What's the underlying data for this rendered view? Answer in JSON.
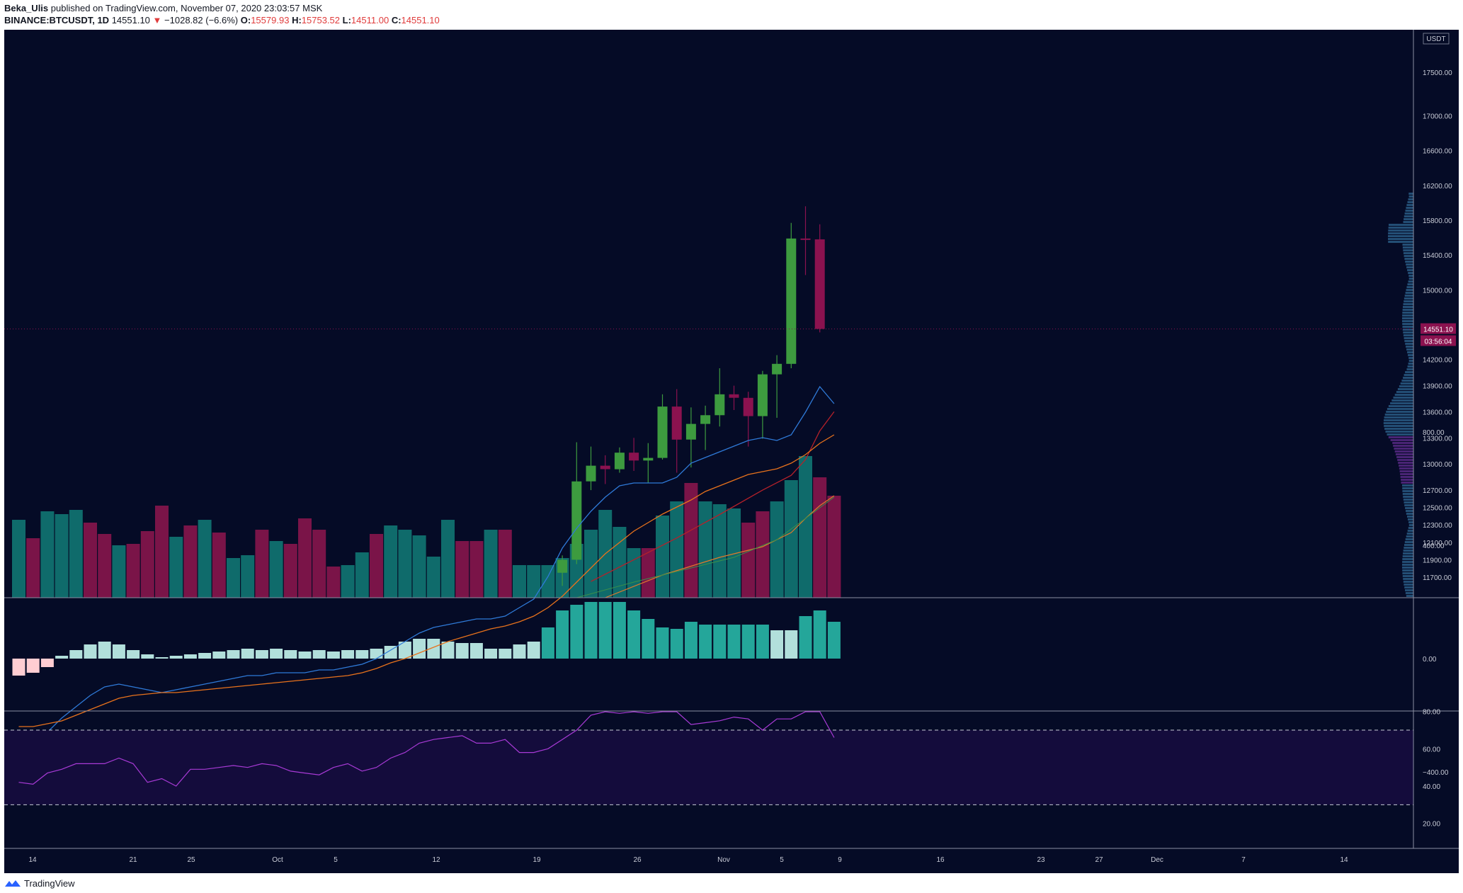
{
  "header": {
    "author": "Beka_Ulis",
    "published_text": "published on TradingView.com, November 07, 2020 23:03:57 MSK",
    "symbol": "BINANCE:BTCUSDT, 1D",
    "last": "14551.10",
    "change": "−1028.82 (−6.6%)",
    "o_label": "O:",
    "o_value": "15579.93",
    "h_label": "H:",
    "h_value": "15753.52",
    "l_label": "L:",
    "l_value": "14511.00",
    "c_label": "C:",
    "c_value": "14551.10"
  },
  "footer": {
    "brand": "TradingView"
  },
  "colors": {
    "background": "#050b26",
    "up": "#3d9b3f",
    "down": "#8b124f",
    "vol_up": "#0f6b6b",
    "vol_down": "#7a1448",
    "macd": "#2f7ad8",
    "signal": "#e8721c",
    "rsi": "#a83ad6",
    "rsi_band": "#140c3c",
    "ma_red": "#b5212a",
    "ma_orange": "#e07a2b",
    "price_label": "#8b124f"
  },
  "chart_data": [
    {
      "type": "candlestick",
      "title": "BINANCE:BTCUSDT, 1D",
      "currency": "USDT",
      "current_price": "14551.10",
      "countdown": "03:56:04",
      "y_ticks": [
        "17500.00",
        "17000.00",
        "16600.00",
        "16200.00",
        "15800.00",
        "15400.00",
        "15000.00",
        "14551.10",
        "14200.00",
        "13900.00",
        "13600.00",
        "13300.00",
        "13000.00",
        "12700.00",
        "12500.00",
        "12300.00",
        "12100.00",
        "11900.00",
        "11700.00"
      ],
      "x_ticks": [
        "14",
        "21",
        "25",
        "Oct",
        "5",
        "12",
        "19",
        "26",
        "Nov",
        "5",
        "9",
        "16",
        "23",
        "27",
        "Dec",
        "7",
        "14"
      ],
      "candles": [
        {
          "d": "Oct 20",
          "o": 11750,
          "h": 11950,
          "l": 11600,
          "c": 11900
        },
        {
          "d": "Oct 21",
          "o": 11900,
          "h": 13250,
          "l": 11850,
          "c": 12800
        },
        {
          "d": "Oct 22",
          "o": 12800,
          "h": 13200,
          "l": 12700,
          "c": 12980
        },
        {
          "d": "Oct 23",
          "o": 12980,
          "h": 13100,
          "l": 12770,
          "c": 12940
        },
        {
          "d": "Oct 24",
          "o": 12940,
          "h": 13190,
          "l": 12900,
          "c": 13130
        },
        {
          "d": "Oct 25",
          "o": 13130,
          "h": 13300,
          "l": 12920,
          "c": 13040
        },
        {
          "d": "Oct 26",
          "o": 13040,
          "h": 13240,
          "l": 12780,
          "c": 13070
        },
        {
          "d": "Oct 27",
          "o": 13070,
          "h": 13800,
          "l": 13050,
          "c": 13660
        },
        {
          "d": "Oct 28",
          "o": 13660,
          "h": 13860,
          "l": 12900,
          "c": 13280
        },
        {
          "d": "Oct 29",
          "o": 13280,
          "h": 13650,
          "l": 12960,
          "c": 13460
        },
        {
          "d": "Oct 30",
          "o": 13460,
          "h": 13670,
          "l": 13160,
          "c": 13560
        },
        {
          "d": "Oct 31",
          "o": 13560,
          "h": 14100,
          "l": 13430,
          "c": 13800
        },
        {
          "d": "Nov 1",
          "o": 13800,
          "h": 13900,
          "l": 13620,
          "c": 13760
        },
        {
          "d": "Nov 2",
          "o": 13760,
          "h": 13830,
          "l": 13200,
          "c": 13550
        },
        {
          "d": "Nov 3",
          "o": 13550,
          "h": 14070,
          "l": 13290,
          "c": 14030
        },
        {
          "d": "Nov 4",
          "o": 14030,
          "h": 14250,
          "l": 13530,
          "c": 14150
        },
        {
          "d": "Nov 5",
          "o": 14150,
          "h": 15770,
          "l": 14100,
          "c": 15590
        },
        {
          "d": "Nov 6",
          "o": 15590,
          "h": 15960,
          "l": 15170,
          "c": 15580
        },
        {
          "d": "Nov 7",
          "o": 15579.93,
          "h": 15753.52,
          "l": 14511,
          "c": 14551.1
        }
      ],
      "volume": [
        {
          "v": 0.55,
          "up": true
        },
        {
          "v": 0.42,
          "up": false
        },
        {
          "v": 0.61,
          "up": true
        },
        {
          "v": 0.59,
          "up": true
        },
        {
          "v": 0.62,
          "up": true
        },
        {
          "v": 0.53,
          "up": false
        },
        {
          "v": 0.45,
          "up": false
        },
        {
          "v": 0.37,
          "up": true
        },
        {
          "v": 0.38,
          "up": false
        },
        {
          "v": 0.47,
          "up": false
        },
        {
          "v": 0.65,
          "up": false
        },
        {
          "v": 0.43,
          "up": true
        },
        {
          "v": 0.51,
          "up": false
        },
        {
          "v": 0.55,
          "up": true
        },
        {
          "v": 0.46,
          "up": false
        },
        {
          "v": 0.28,
          "up": true
        },
        {
          "v": 0.3,
          "up": true
        },
        {
          "v": 0.48,
          "up": false
        },
        {
          "v": 0.4,
          "up": true
        },
        {
          "v": 0.38,
          "up": false
        },
        {
          "v": 0.56,
          "up": false
        },
        {
          "v": 0.48,
          "up": false
        },
        {
          "v": 0.22,
          "up": false
        },
        {
          "v": 0.23,
          "up": true
        },
        {
          "v": 0.32,
          "up": true
        },
        {
          "v": 0.45,
          "up": false
        },
        {
          "v": 0.51,
          "up": true
        },
        {
          "v": 0.48,
          "up": true
        },
        {
          "v": 0.44,
          "up": true
        },
        {
          "v": 0.29,
          "up": true
        },
        {
          "v": 0.55,
          "up": true
        },
        {
          "v": 0.4,
          "up": false
        },
        {
          "v": 0.4,
          "up": false
        },
        {
          "v": 0.48,
          "up": true
        },
        {
          "v": 0.48,
          "up": false
        },
        {
          "v": 0.23,
          "up": true
        },
        {
          "v": 0.23,
          "up": true
        },
        {
          "v": 0.23,
          "up": true
        },
        {
          "v": 0.28,
          "up": true
        },
        {
          "v": 0.38,
          "up": true
        },
        {
          "v": 0.48,
          "up": true
        },
        {
          "v": 0.62,
          "up": true
        },
        {
          "v": 0.5,
          "up": true
        },
        {
          "v": 0.35,
          "up": true
        },
        {
          "v": 0.35,
          "up": false
        },
        {
          "v": 0.58,
          "up": true
        },
        {
          "v": 0.68,
          "up": true
        },
        {
          "v": 0.81,
          "up": false
        },
        {
          "v": 0.68,
          "up": true
        },
        {
          "v": 0.66,
          "up": true
        },
        {
          "v": 0.63,
          "up": true
        },
        {
          "v": 0.53,
          "up": false
        },
        {
          "v": 0.61,
          "up": false
        },
        {
          "v": 0.68,
          "up": true
        },
        {
          "v": 0.83,
          "up": true
        },
        {
          "v": 1.0,
          "up": true
        },
        {
          "v": 0.85,
          "up": false
        },
        {
          "v": 0.72,
          "up": false
        }
      ],
      "ma_red": [
        {
          "i": 40,
          "y": 11650
        },
        {
          "i": 43,
          "y": 11900
        },
        {
          "i": 46,
          "y": 12150
        },
        {
          "i": 49,
          "y": 12420
        },
        {
          "i": 52,
          "y": 12700
        },
        {
          "i": 54,
          "y": 12870
        },
        {
          "i": 55,
          "y": 13050
        },
        {
          "i": 56,
          "y": 13380
        },
        {
          "i": 57,
          "y": 13600
        }
      ]
    },
    {
      "type": "line",
      "title": "MACD",
      "y_ticks": [
        "800.00",
        "400.00",
        "0.00",
        "−400.00"
      ],
      "ylim": [
        -600,
        900
      ],
      "macd": [
        -300,
        -290,
        -260,
        -210,
        -170,
        -130,
        -100,
        -90,
        -100,
        -110,
        -120,
        -110,
        -100,
        -90,
        -80,
        -70,
        -60,
        -60,
        -50,
        -50,
        -50,
        -40,
        -40,
        -30,
        -20,
        0,
        30,
        60,
        90,
        110,
        120,
        130,
        140,
        140,
        150,
        180,
        210,
        290,
        390,
        460,
        520,
        570,
        610,
        620,
        620,
        620,
        640,
        690,
        710,
        730,
        750,
        770,
        780,
        770,
        790,
        870,
        960,
        900
      ],
      "signal": [
        -240,
        -240,
        -230,
        -220,
        -200,
        -180,
        -160,
        -140,
        -130,
        -125,
        -120,
        -120,
        -115,
        -110,
        -105,
        -100,
        -95,
        -90,
        -85,
        -80,
        -75,
        -70,
        -65,
        -60,
        -50,
        -35,
        -15,
        0,
        20,
        40,
        60,
        75,
        90,
        105,
        115,
        130,
        150,
        180,
        220,
        270,
        320,
        370,
        410,
        450,
        480,
        510,
        535,
        560,
        590,
        610,
        630,
        650,
        660,
        670,
        690,
        720,
        760,
        790
      ],
      "hist": [
        -60,
        -50,
        -30,
        10,
        30,
        50,
        60,
        50,
        30,
        15,
        5,
        10,
        15,
        20,
        25,
        30,
        35,
        30,
        35,
        30,
        25,
        30,
        25,
        30,
        30,
        35,
        45,
        60,
        70,
        70,
        60,
        55,
        55,
        35,
        35,
        50,
        60,
        110,
        170,
        190,
        200,
        200,
        200,
        170,
        140,
        110,
        105,
        130,
        120,
        120,
        120,
        120,
        120,
        100,
        100,
        150,
        170,
        130
      ]
    },
    {
      "type": "line",
      "title": "RSI",
      "y_ticks": [
        "80.00",
        "60.00",
        "40.00",
        "20.00"
      ],
      "ylim": [
        15,
        85
      ],
      "upper": 70,
      "lower": 30,
      "values": [
        42,
        41,
        47,
        49,
        52,
        52,
        52,
        55,
        52,
        42,
        44,
        40,
        49,
        49,
        50,
        51,
        50,
        52,
        51,
        48,
        47,
        46,
        50,
        52,
        48,
        50,
        55,
        58,
        63,
        65,
        66,
        67,
        63,
        63,
        65,
        58,
        58,
        60,
        65,
        70,
        78,
        80,
        79,
        80,
        79,
        80,
        81,
        73,
        74,
        75,
        77,
        76,
        70,
        76,
        76,
        84,
        84,
        66
      ]
    }
  ]
}
